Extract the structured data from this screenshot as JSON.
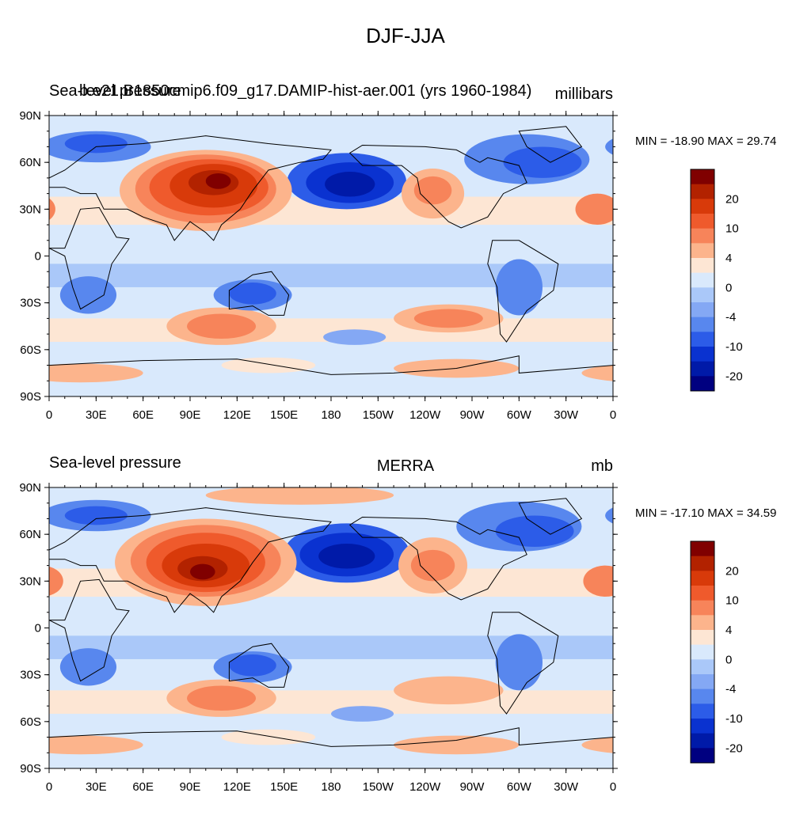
{
  "title": "DJF-JJA",
  "panels": [
    {
      "left_label": "Sea-level pressure",
      "overlap_label": "b.e21.B1850cmip6.f09_g17.DAMIP-hist-aer.001 (yrs 1960-1984)",
      "center_label": "",
      "right_label": "millibars",
      "minmax": "MIN = -18.90 MAX =  29.74"
    },
    {
      "left_label": "Sea-level pressure",
      "overlap_label": "",
      "center_label": "MERRA",
      "right_label": "mb",
      "minmax": "MIN = -17.10 MAX =  34.59"
    }
  ],
  "axes": {
    "lat_ticks": [
      "90N",
      "60N",
      "30N",
      "0",
      "30S",
      "60S",
      "90S"
    ],
    "lon_ticks": [
      "0",
      "30E",
      "60E",
      "90E",
      "120E",
      "150E",
      "180",
      "150W",
      "120W",
      "90W",
      "60W",
      "30W",
      "0"
    ]
  },
  "colorbar": {
    "labels": [
      "20",
      "10",
      "4",
      "0",
      "-4",
      "-10",
      "-20"
    ],
    "colors": [
      "#800000",
      "#b22200",
      "#d83a0a",
      "#ef5a2c",
      "#f7845a",
      "#fcb48c",
      "#fde6d4",
      "#d9e9fc",
      "#aac8f9",
      "#84a8f4",
      "#5887ee",
      "#2c5ce8",
      "#0a32d0",
      "#001aa8",
      "#000080"
    ]
  },
  "chart_data": {
    "type": "heatmap",
    "variable": "Sea-level pressure",
    "season": "DJF-JJA",
    "contour_levels": [
      -20,
      -15,
      -10,
      -8,
      -6,
      -4,
      -2,
      0,
      2,
      4,
      6,
      8,
      10,
      15,
      20
    ],
    "panels": [
      {
        "source": "b.e21.B1850cmip6.f09_g17.DAMIP-hist-aer.001 (yrs 1960-1984)",
        "units": "millibars",
        "min": -18.9,
        "max": 29.74
      },
      {
        "source": "MERRA",
        "units": "mb",
        "min": -17.1,
        "max": 34.59
      }
    ]
  }
}
